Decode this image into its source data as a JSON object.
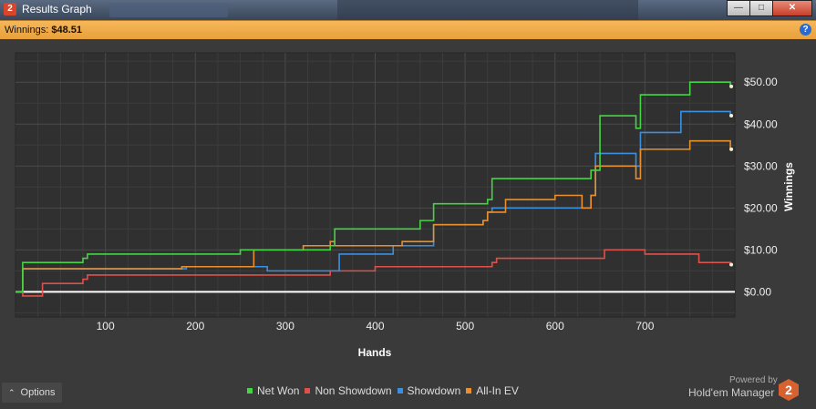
{
  "window": {
    "title": "Results Graph",
    "icon_label": "2"
  },
  "window_buttons": {
    "minimize": "—",
    "maximize": "□",
    "close": "✕"
  },
  "winnings_bar": {
    "label": "Winnings:",
    "value": "$48.51",
    "help_icon": "?"
  },
  "chart_data": {
    "type": "line",
    "xlabel": "Hands",
    "ylabel": "Winnings",
    "xlim": [
      0,
      800
    ],
    "ylim": [
      -6,
      57
    ],
    "x_ticks": [
      {
        "value": 100,
        "label": "100"
      },
      {
        "value": 200,
        "label": "200"
      },
      {
        "value": 300,
        "label": "300"
      },
      {
        "value": 400,
        "label": "400"
      },
      {
        "value": 500,
        "label": "500"
      },
      {
        "value": 600,
        "label": "600"
      },
      {
        "value": 700,
        "label": "700"
      }
    ],
    "y_ticks": [
      {
        "value": 0,
        "label": "$0.00"
      },
      {
        "value": 10,
        "label": "$10.00"
      },
      {
        "value": 20,
        "label": "$20.00"
      },
      {
        "value": 30,
        "label": "$30.00"
      },
      {
        "value": 40,
        "label": "$40.00"
      },
      {
        "value": 50,
        "label": "$50.00"
      }
    ],
    "grid": true,
    "legend_position": "bottom",
    "series": [
      {
        "name": "Net Won",
        "color": "#44d444",
        "x": [
          0,
          8,
          12,
          75,
          80,
          150,
          250,
          350,
          355,
          450,
          465,
          525,
          530,
          640,
          650,
          690,
          695,
          745,
          750,
          795
        ],
        "y": [
          0,
          7,
          7,
          8,
          9,
          9,
          10,
          11,
          15,
          17,
          21,
          22,
          27,
          29,
          42,
          39,
          47,
          47,
          50,
          49
        ]
      },
      {
        "name": "Non Showdown",
        "color": "#e0504a",
        "x": [
          0,
          8,
          30,
          75,
          80,
          250,
          350,
          400,
          500,
          530,
          535,
          650,
          655,
          700,
          760,
          795
        ],
        "y": [
          0,
          -1,
          2,
          3,
          4,
          4,
          5,
          6,
          6,
          7,
          8,
          8,
          10,
          9,
          7,
          6.5
        ]
      },
      {
        "name": "Showdown",
        "color": "#3b8fe0",
        "x": [
          0,
          8,
          12,
          185,
          190,
          280,
          355,
          360,
          420,
          465,
          520,
          525,
          530,
          625,
          640,
          645,
          690,
          695,
          735,
          740,
          795
        ],
        "y": [
          0,
          5.5,
          5.5,
          5.5,
          6,
          5,
          5,
          9,
          11,
          16,
          17,
          19,
          20,
          20,
          23,
          33,
          30,
          38,
          38,
          43,
          42
        ]
      },
      {
        "name": "All-In EV",
        "color": "#e8902f",
        "x": [
          0,
          8,
          12,
          180,
          185,
          260,
          265,
          290,
          320,
          350,
          355,
          420,
          430,
          465,
          470,
          520,
          525,
          540,
          545,
          595,
          600,
          630,
          640,
          645,
          690,
          695,
          745,
          750,
          795
        ],
        "y": [
          0,
          5.5,
          5.5,
          5.5,
          6,
          6,
          10,
          10,
          11,
          12,
          11,
          11,
          12,
          16,
          16,
          17,
          19,
          19,
          22,
          22,
          23,
          20,
          23,
          30,
          27,
          34,
          34,
          36,
          34
        ]
      }
    ]
  },
  "options_button": {
    "label": "Options",
    "icon": "chevron-up"
  },
  "branding": {
    "powered_by": "Powered by",
    "product": "Hold'em Manager",
    "logo_digit": "2"
  }
}
